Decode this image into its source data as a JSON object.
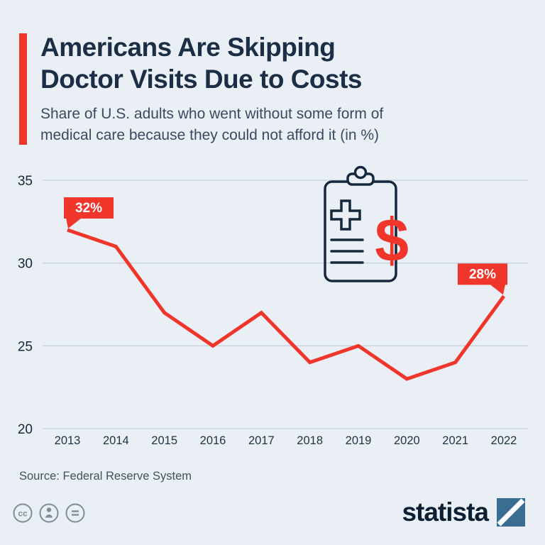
{
  "header": {
    "title_line1": "Americans Are Skipping",
    "title_line2": "Doctor Visits Due to Costs",
    "subtitle_line1": "Share of U.S. adults who went without some form of",
    "subtitle_line2": "medical care because they could not afford it (in %)"
  },
  "chart_data": {
    "type": "line",
    "title": "Americans Are Skipping Doctor Visits Due to Costs",
    "subtitle": "Share of U.S. adults who went without some form of medical care because they could not afford it (in %)",
    "x": [
      "2013",
      "2014",
      "2015",
      "2016",
      "2017",
      "2018",
      "2019",
      "2020",
      "2021",
      "2022"
    ],
    "values": [
      32,
      31,
      27,
      25,
      27,
      24,
      25,
      23,
      24,
      28
    ],
    "ylim": [
      20,
      35
    ],
    "yticks": [
      35,
      30,
      25,
      20
    ],
    "grid": true,
    "legend": "none",
    "line_color": "#f0362b",
    "annotations": [
      {
        "index": 0,
        "label": "32%",
        "pointer": "left"
      },
      {
        "index": 9,
        "label": "28%",
        "pointer": "right"
      }
    ]
  },
  "icons": {
    "dollar_glyph": "$",
    "cc_label": "cc"
  },
  "footer": {
    "source": "Source: Federal Reserve System",
    "brand": "statista"
  },
  "colors": {
    "background": "#e9eff5",
    "accent_red": "#f0362b",
    "navy": "#16283c",
    "subtitle_text": "#3a4a61",
    "grid": "#c6d2dc",
    "axis_text": "#1f3242",
    "annotation_text": "#ffffff",
    "icon_gray": "#7f8d9b",
    "logo_blue": "#3a6d92"
  }
}
